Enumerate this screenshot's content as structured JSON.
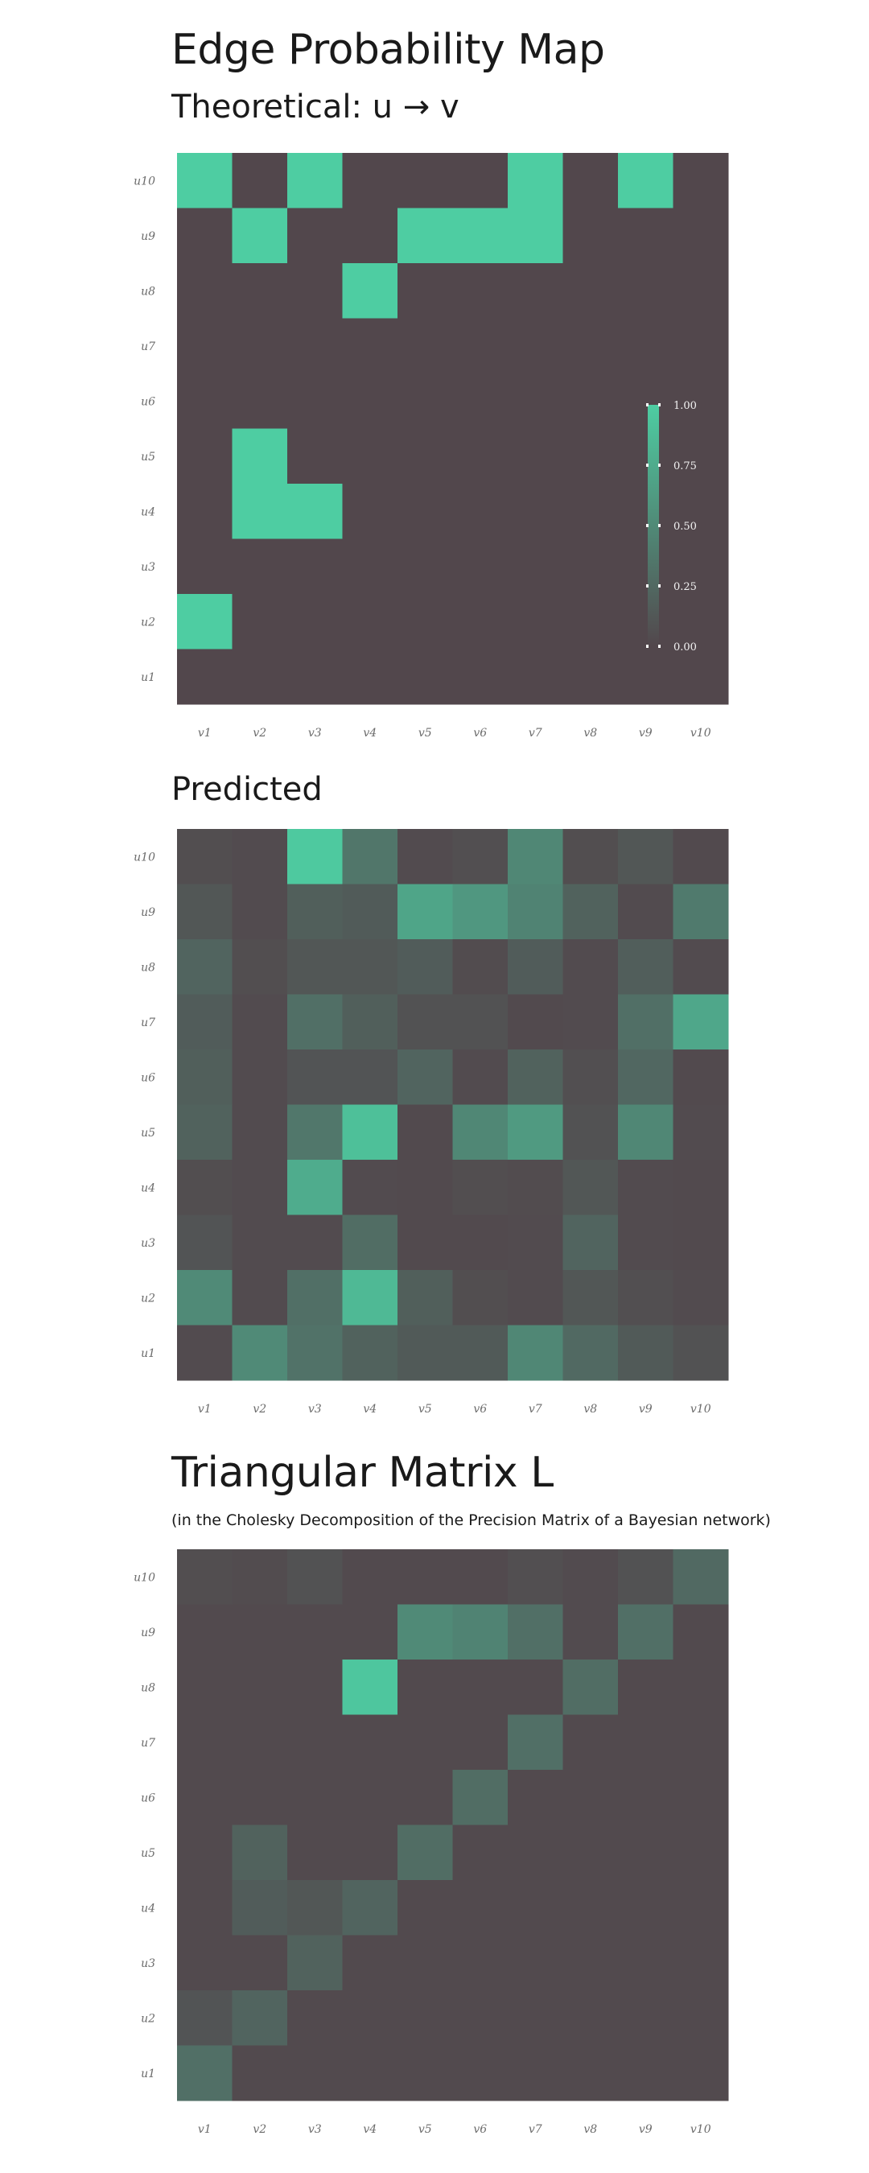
{
  "header": {
    "title": "Edge Probability Map",
    "subtitle": "Theoretical: u → v"
  },
  "sections": {
    "predicted_title": "Predicted",
    "triangular_title": "Triangular Matrix L",
    "triangular_note": "(in the Cholesky Decomposition of the Precision Matrix of a Bayesian network)"
  },
  "colors": {
    "low": "#52474c",
    "high": "#4ecda2",
    "tick_text": "#6b6b6b",
    "legend_text": "#f2f2f2"
  },
  "chart_data": [
    {
      "type": "heatmap",
      "title": "Theoretical: u → v",
      "x_labels": [
        "v1",
        "v2",
        "v3",
        "v4",
        "v5",
        "v6",
        "v7",
        "v8",
        "v9",
        "v10"
      ],
      "y_labels_top_to_bottom": [
        "u10",
        "u9",
        "u8",
        "u7",
        "u6",
        "u5",
        "u4",
        "u3",
        "u2",
        "u1"
      ],
      "values": [
        [
          1,
          0,
          1,
          0,
          0,
          0,
          1,
          0,
          1,
          0
        ],
        [
          0,
          1,
          0,
          0,
          1,
          1,
          1,
          0,
          0,
          0
        ],
        [
          0,
          0,
          0,
          1,
          0,
          0,
          0,
          0,
          0,
          0
        ],
        [
          0,
          0,
          0,
          0,
          0,
          0,
          0,
          0,
          0,
          0
        ],
        [
          0,
          0,
          0,
          0,
          0,
          0,
          0,
          0,
          0,
          0
        ],
        [
          0,
          1,
          0,
          0,
          0,
          0,
          0,
          0,
          0,
          0
        ],
        [
          0,
          1,
          1,
          0,
          0,
          0,
          0,
          0,
          0,
          0
        ],
        [
          0,
          0,
          0,
          0,
          0,
          0,
          0,
          0,
          0,
          0
        ],
        [
          1,
          0,
          0,
          0,
          0,
          0,
          0,
          0,
          0,
          0
        ],
        [
          0,
          0,
          0,
          0,
          0,
          0,
          0,
          0,
          0,
          0
        ]
      ],
      "value_range": [
        0,
        1
      ],
      "legend": {
        "ticks": [
          "1.00",
          "0.75",
          "0.50",
          "0.25",
          "0.00"
        ],
        "placement": "right"
      }
    },
    {
      "type": "heatmap",
      "title": "Predicted",
      "x_labels": [
        "v1",
        "v2",
        "v3",
        "v4",
        "v5",
        "v6",
        "v7",
        "v8",
        "v9",
        "v10"
      ],
      "y_labels_top_to_bottom": [
        "u10",
        "u9",
        "u8",
        "u7",
        "u6",
        "u5",
        "u4",
        "u3",
        "u2",
        "u1"
      ],
      "values": [
        [
          0.05,
          0.03,
          0.97,
          0.35,
          0.03,
          0.06,
          0.48,
          0.05,
          0.12,
          0.02
        ],
        [
          0.12,
          0.03,
          0.18,
          0.15,
          0.7,
          0.6,
          0.45,
          0.2,
          0.03,
          0.38
        ],
        [
          0.22,
          0.05,
          0.12,
          0.12,
          0.16,
          0.04,
          0.16,
          0.03,
          0.17,
          0.03
        ],
        [
          0.16,
          0.03,
          0.3,
          0.18,
          0.08,
          0.08,
          0.02,
          0.03,
          0.3,
          0.72
        ],
        [
          0.18,
          0.03,
          0.1,
          0.1,
          0.22,
          0.03,
          0.2,
          0.06,
          0.24,
          0.02
        ],
        [
          0.2,
          0.03,
          0.36,
          0.9,
          0.02,
          0.48,
          0.62,
          0.08,
          0.48,
          0.03
        ],
        [
          0.05,
          0.03,
          0.75,
          0.03,
          0.02,
          0.05,
          0.04,
          0.12,
          0.03,
          0.02
        ],
        [
          0.1,
          0.03,
          0.03,
          0.28,
          0.02,
          0.02,
          0.03,
          0.22,
          0.03,
          0.02
        ],
        [
          0.5,
          0.03,
          0.3,
          0.85,
          0.18,
          0.05,
          0.03,
          0.12,
          0.06,
          0.03
        ],
        [
          0.03,
          0.5,
          0.32,
          0.2,
          0.14,
          0.14,
          0.48,
          0.25,
          0.14,
          0.08
        ]
      ],
      "value_range": [
        0,
        1
      ]
    },
    {
      "type": "heatmap",
      "title": "Triangular Matrix L",
      "x_labels": [
        "v1",
        "v2",
        "v3",
        "v4",
        "v5",
        "v6",
        "v7",
        "v8",
        "v9",
        "v10"
      ],
      "y_labels_top_to_bottom": [
        "u10",
        "u9",
        "u8",
        "u7",
        "u6",
        "u5",
        "u4",
        "u3",
        "u2",
        "u1"
      ],
      "values": [
        [
          0.05,
          0.04,
          0.08,
          0.02,
          0.02,
          0.02,
          0.06,
          0.03,
          0.08,
          0.25
        ],
        [
          0.02,
          0.02,
          0.02,
          0.02,
          0.5,
          0.45,
          0.3,
          0.03,
          0.3,
          0.02
        ],
        [
          0.02,
          0.02,
          0.02,
          0.95,
          0.02,
          0.02,
          0.02,
          0.28,
          0.02,
          0.02
        ],
        [
          0.02,
          0.02,
          0.02,
          0.02,
          0.02,
          0.02,
          0.3,
          0.02,
          0.02,
          0.02
        ],
        [
          0.02,
          0.02,
          0.02,
          0.02,
          0.02,
          0.28,
          0.02,
          0.02,
          0.02,
          0.02
        ],
        [
          0.02,
          0.2,
          0.02,
          0.02,
          0.28,
          0.02,
          0.02,
          0.02,
          0.02,
          0.02
        ],
        [
          0.02,
          0.16,
          0.12,
          0.22,
          0.02,
          0.02,
          0.02,
          0.02,
          0.02,
          0.02
        ],
        [
          0.02,
          0.02,
          0.2,
          0.02,
          0.02,
          0.02,
          0.02,
          0.02,
          0.02,
          0.02
        ],
        [
          0.1,
          0.22,
          0.02,
          0.02,
          0.02,
          0.02,
          0.02,
          0.02,
          0.02,
          0.02
        ],
        [
          0.3,
          0.02,
          0.02,
          0.02,
          0.02,
          0.02,
          0.02,
          0.02,
          0.02,
          0.02
        ]
      ],
      "value_range": [
        0,
        1
      ]
    }
  ]
}
